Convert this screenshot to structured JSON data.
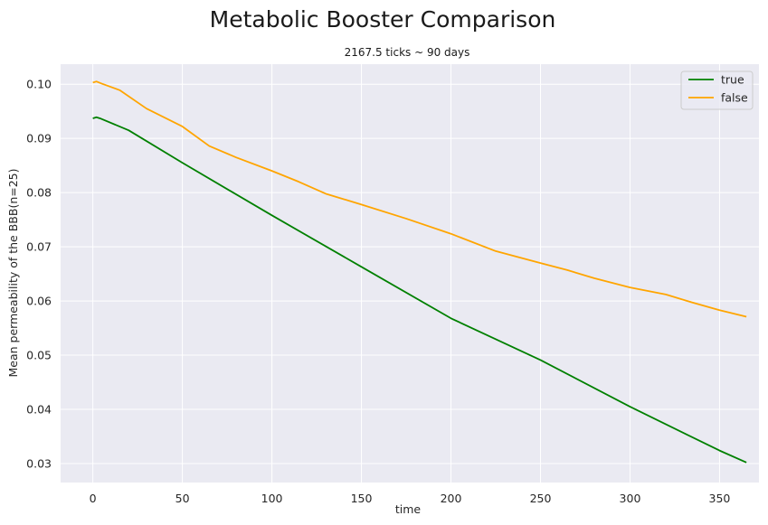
{
  "chart_data": {
    "type": "line",
    "title": "Metabolic Booster Comparison",
    "subtitle": "2167.5 ticks ~ 90 days",
    "xlabel": "time",
    "ylabel": "Mean permeability of the BBB(n=25)",
    "xlim": [
      -18,
      372
    ],
    "ylim": [
      0.0265,
      0.1037
    ],
    "xticks": [
      0,
      50,
      100,
      150,
      200,
      250,
      300,
      350
    ],
    "yticks": [
      0.03,
      0.04,
      0.05,
      0.06,
      0.07,
      0.08,
      0.09,
      0.1
    ],
    "ytick_labels": [
      "0.03",
      "0.04",
      "0.05",
      "0.06",
      "0.07",
      "0.08",
      "0.09",
      "0.10"
    ],
    "grid": true,
    "legend_position": "top-right",
    "series": [
      {
        "name": "true",
        "color": "#008000",
        "x": [
          0,
          2,
          4,
          20,
          50,
          100,
          150,
          200,
          250,
          300,
          350,
          365
        ],
        "y": [
          0.0937,
          0.0939,
          0.0937,
          0.0915,
          0.0855,
          0.0758,
          0.0663,
          0.0568,
          0.0491,
          0.0405,
          0.0324,
          0.0302
        ]
      },
      {
        "name": "false",
        "color": "#FFA500",
        "x": [
          0,
          2,
          5,
          15,
          30,
          50,
          65,
          80,
          100,
          115,
          130,
          150,
          175,
          200,
          225,
          250,
          265,
          280,
          300,
          320,
          335,
          350,
          365
        ],
        "y": [
          0.1003,
          0.1005,
          0.1001,
          0.0989,
          0.0955,
          0.0922,
          0.0886,
          0.0865,
          0.084,
          0.082,
          0.0798,
          0.0778,
          0.0752,
          0.0724,
          0.0692,
          0.067,
          0.0657,
          0.0642,
          0.0625,
          0.0612,
          0.0597,
          0.0583,
          0.0571
        ]
      }
    ]
  }
}
